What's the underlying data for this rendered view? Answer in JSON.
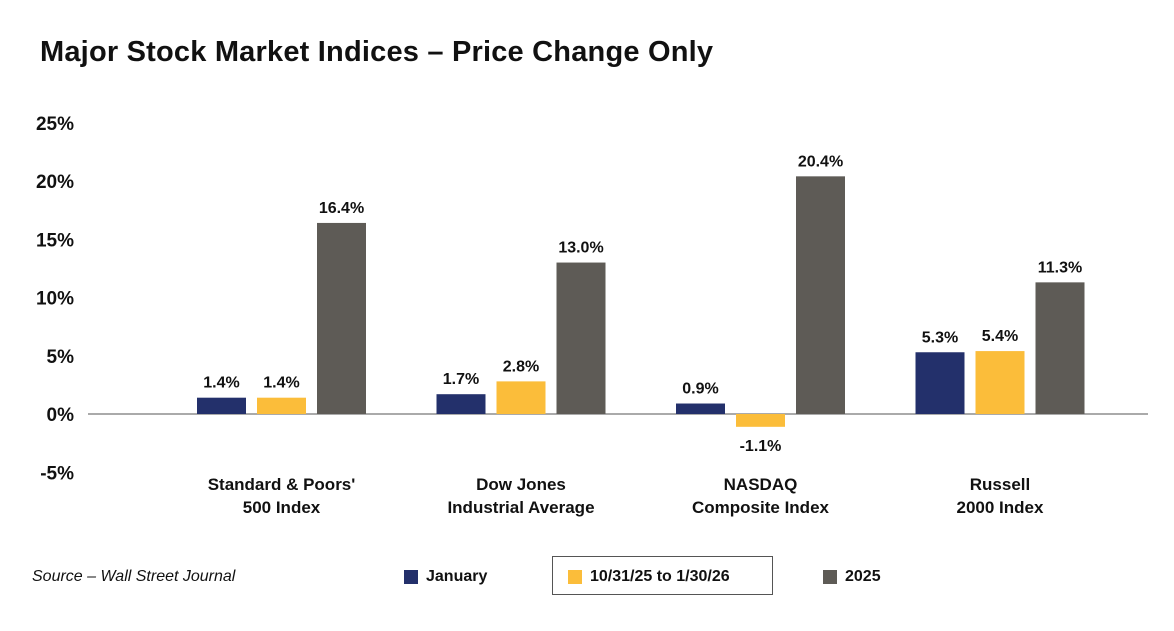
{
  "chart_data": {
    "type": "bar",
    "title": "Major Stock Market Indices – Price Change Only",
    "categories": [
      [
        "Standard & Poors'",
        "500 Index"
      ],
      [
        "Dow Jones",
        "Industrial Average"
      ],
      [
        "NASDAQ",
        "Composite Index"
      ],
      [
        "Russell",
        "2000 Index"
      ]
    ],
    "series": [
      {
        "name": "January",
        "color": "#23306b",
        "values": [
          1.4,
          1.7,
          0.9,
          5.3
        ],
        "labels": [
          "1.4%",
          "1.7%",
          "0.9%",
          "5.3%"
        ]
      },
      {
        "name": "10/31/25 to 1/30/26",
        "color": "#fbbd3a",
        "values": [
          1.4,
          2.8,
          -1.1,
          5.4
        ],
        "labels": [
          "1.4%",
          "2.8%",
          "-1.1%",
          "5.4%"
        ]
      },
      {
        "name": "2025",
        "color": "#5e5b56",
        "values": [
          16.4,
          13.0,
          20.4,
          11.3
        ],
        "labels": [
          "16.4%",
          "13.0%",
          "20.4%",
          "11.3%"
        ]
      }
    ],
    "yticks": [
      "25%",
      "20%",
      "15%",
      "10%",
      "5%",
      "0%",
      "-5%"
    ],
    "ytick_values": [
      25,
      20,
      15,
      10,
      5,
      0,
      -5
    ],
    "ylim": [
      -5,
      25
    ],
    "grid": false,
    "legend_position": "bottom",
    "source": "Source – Wall Street Journal"
  }
}
